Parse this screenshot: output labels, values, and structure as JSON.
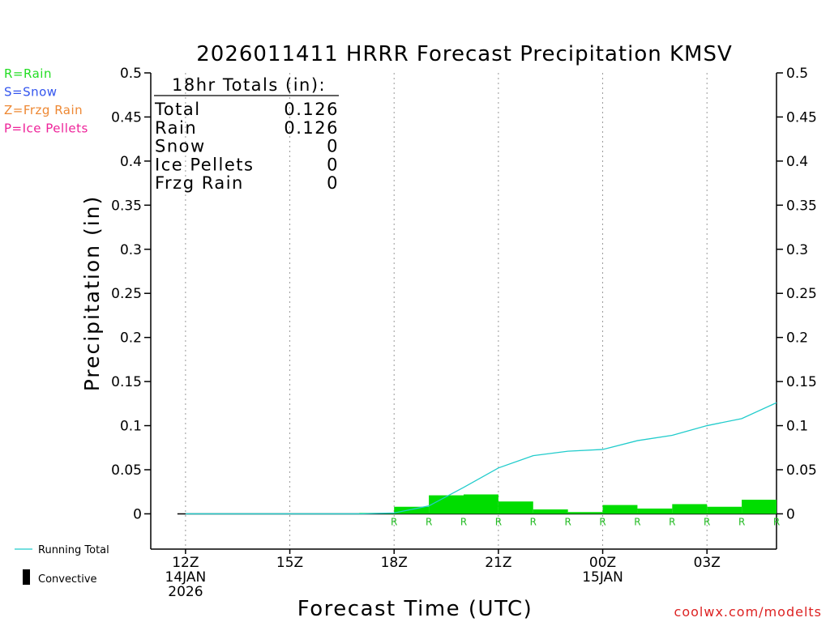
{
  "chart_data": {
    "type": "bar",
    "title": "2026011411 HRRR Forecast Precipitation KMSV",
    "xlabel": "Forecast Time (UTC)",
    "ylabel": "Precipitation (in)",
    "ylim": [
      -0.04,
      0.5
    ],
    "y_ticks": [
      0,
      0.05,
      0.1,
      0.15,
      0.2,
      0.25,
      0.3,
      0.35,
      0.4,
      0.45,
      0.5
    ],
    "y_tick_labels": [
      "0",
      "0.05",
      "0.1",
      "0.15",
      "0.2",
      "0.25",
      "0.3",
      "0.35",
      "0.4",
      "0.45",
      "0.5"
    ],
    "x_range_hours": [
      11,
      29
    ],
    "x_ticks": [
      {
        "hour": 12,
        "lines": [
          "12Z",
          "14JAN",
          "2026"
        ]
      },
      {
        "hour": 15,
        "lines": [
          "15Z"
        ]
      },
      {
        "hour": 18,
        "lines": [
          "18Z"
        ]
      },
      {
        "hour": 21,
        "lines": [
          "21Z"
        ]
      },
      {
        "hour": 24,
        "lines": [
          "00Z",
          "15JAN"
        ]
      },
      {
        "hour": 27,
        "lines": [
          "03Z"
        ]
      }
    ],
    "x_grid_hours": [
      12,
      15,
      18,
      21,
      24,
      27
    ],
    "hours": [
      12,
      13,
      14,
      15,
      16,
      17,
      18,
      19,
      20,
      21,
      22,
      23,
      24,
      25,
      26,
      27,
      28,
      29
    ],
    "hourly_precip": [
      0,
      0,
      0,
      0,
      0,
      0,
      0.001,
      0.008,
      0.021,
      0.022,
      0.014,
      0.005,
      0.002,
      0.01,
      0.006,
      0.011,
      0.008,
      0.016
    ],
    "precip_type_labels": [
      "",
      "",
      "",
      "",
      "",
      "",
      "R",
      "R",
      "R",
      "R",
      "R",
      "R",
      "R",
      "R",
      "R",
      "R",
      "R",
      "R"
    ],
    "running_total": [
      0,
      0,
      0,
      0,
      0,
      0,
      0.001,
      0.009,
      0.03,
      0.052,
      0.066,
      0.071,
      0.073,
      0.083,
      0.089,
      0.1,
      0.108,
      0.126
    ],
    "series": [
      {
        "name": "Rain",
        "color": "#00dd00",
        "values_ref": "hourly_precip"
      },
      {
        "name": "Running Total",
        "color": "#22cccc",
        "values_ref": "running_total"
      }
    ]
  },
  "legend_types": [
    {
      "label": "R=Rain",
      "color": "#22dd22"
    },
    {
      "label": "S=Snow",
      "color": "#3355ee"
    },
    {
      "label": "Z=Frzg Rain",
      "color": "#ee8833"
    },
    {
      "label": "P=Ice Pellets",
      "color": "#ee2299"
    }
  ],
  "totals": {
    "header": "18hr Totals (in):",
    "rows": [
      {
        "label": "Total",
        "value": "0.126"
      },
      {
        "label": "Rain",
        "value": "0.126"
      },
      {
        "label": "Snow",
        "value": "0"
      },
      {
        "label": "Ice Pellets",
        "value": "0"
      },
      {
        "label": "Frzg Rain",
        "value": "0"
      }
    ]
  },
  "bottom_legend": {
    "running_total_label": "Running Total",
    "convective_label": "Convective"
  },
  "credit": "coolwx.com/modelts",
  "colors": {
    "rain_bar": "#00dd00",
    "running_line": "#22cccc",
    "rain_letter": "#22bb22",
    "credit": "#dd2222"
  }
}
